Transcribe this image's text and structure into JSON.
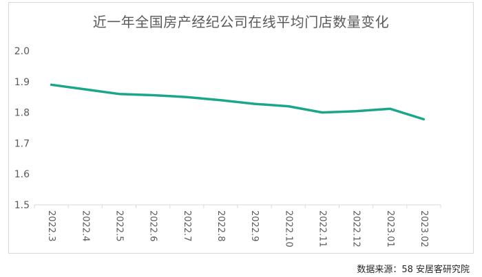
{
  "title": "近一年全国房产经纪公司在线平均门店数量变化",
  "source": "数据来源：58 安居客研究院",
  "colors": {
    "line": "#1aa68a",
    "axis_text": "#595959",
    "axis_line": "#d9d9d9"
  },
  "chart_data": {
    "type": "line",
    "title": "近一年全国房产经纪公司在线平均门店数量变化",
    "xlabel": "",
    "ylabel": "",
    "categories": [
      "2022.3",
      "2022.4",
      "2022.5",
      "2022.6",
      "2022.7",
      "2022.8",
      "2022.9",
      "2022.10",
      "2022.11",
      "2022.12",
      "2023.01",
      "2023.02"
    ],
    "series": [
      {
        "values": [
          1.89,
          1.875,
          1.86,
          1.856,
          1.85,
          1.84,
          1.828,
          1.82,
          1.8,
          1.804,
          1.812,
          1.778
        ]
      }
    ],
    "ylim": [
      1.5,
      2.0
    ],
    "yticks": [
      "1.5",
      "1.6",
      "1.7",
      "1.8",
      "1.9",
      "2.0"
    ],
    "grid": false,
    "legend": "none"
  }
}
